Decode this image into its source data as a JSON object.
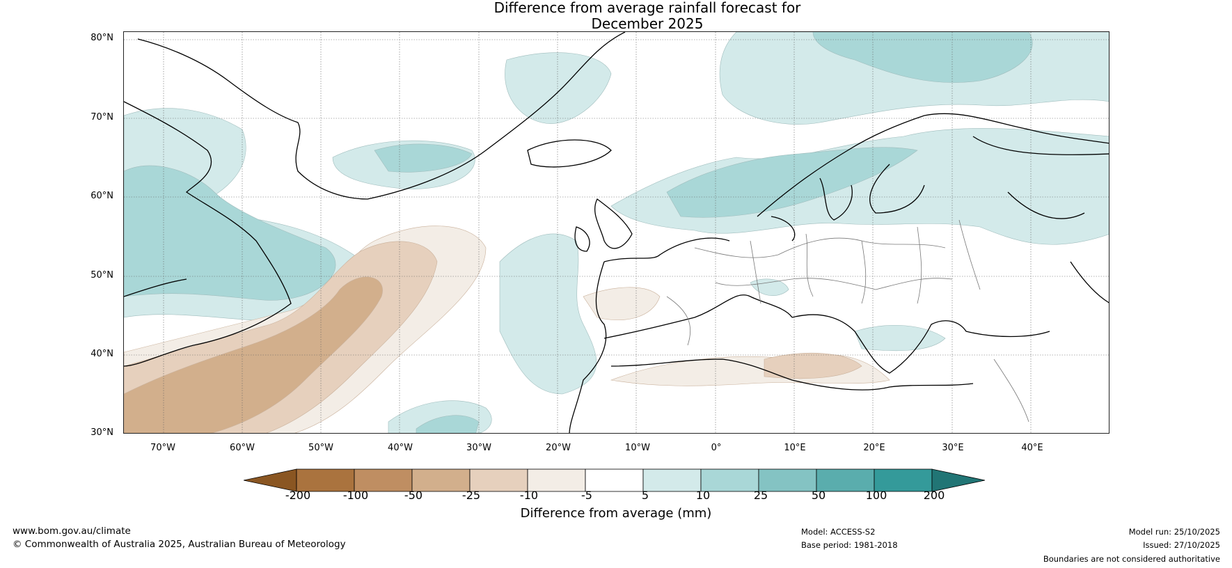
{
  "title": {
    "line1": "Difference from average rainfall forecast for",
    "line2": "December 2025"
  },
  "map": {
    "region": "North Atlantic and Europe",
    "lat_labels": [
      "80°N",
      "70°N",
      "60°N",
      "50°N",
      "40°N",
      "30°N"
    ],
    "lon_labels": [
      "70°W",
      "60°W",
      "50°W",
      "40°W",
      "30°W",
      "20°W",
      "10°W",
      "0°",
      "10°E",
      "20°E",
      "30°E",
      "40°E"
    ],
    "lat_range": [
      30,
      81
    ],
    "lon_range": [
      -75,
      50
    ]
  },
  "colorbar": {
    "tick_labels": [
      "-200",
      "-100",
      "-50",
      "-25",
      "-10",
      "-5",
      "5",
      "10",
      "25",
      "50",
      "100",
      "200"
    ],
    "colors": [
      "#8a5622",
      "#aa733e",
      "#bf8e62",
      "#d2af8c",
      "#e6d0bd",
      "#f3ede6",
      "#ffffff",
      "#d3eaea",
      "#a9d7d7",
      "#84c3c3",
      "#5aadad",
      "#349a9a",
      "#217575"
    ],
    "label": "Difference from average (mm)"
  },
  "footer": {
    "site": "www.bom.gov.au/climate",
    "copyright": "© Commonwealth of Australia 2025, Australian Bureau of Meteorology",
    "model": "Model: ACCESS-S2",
    "base_period": "Base period: 1981-2018",
    "model_run": "Model run: 25/10/2025",
    "issued": "Issued: 27/10/2025",
    "disclaimer": "Boundaries are not considered authoritative"
  }
}
